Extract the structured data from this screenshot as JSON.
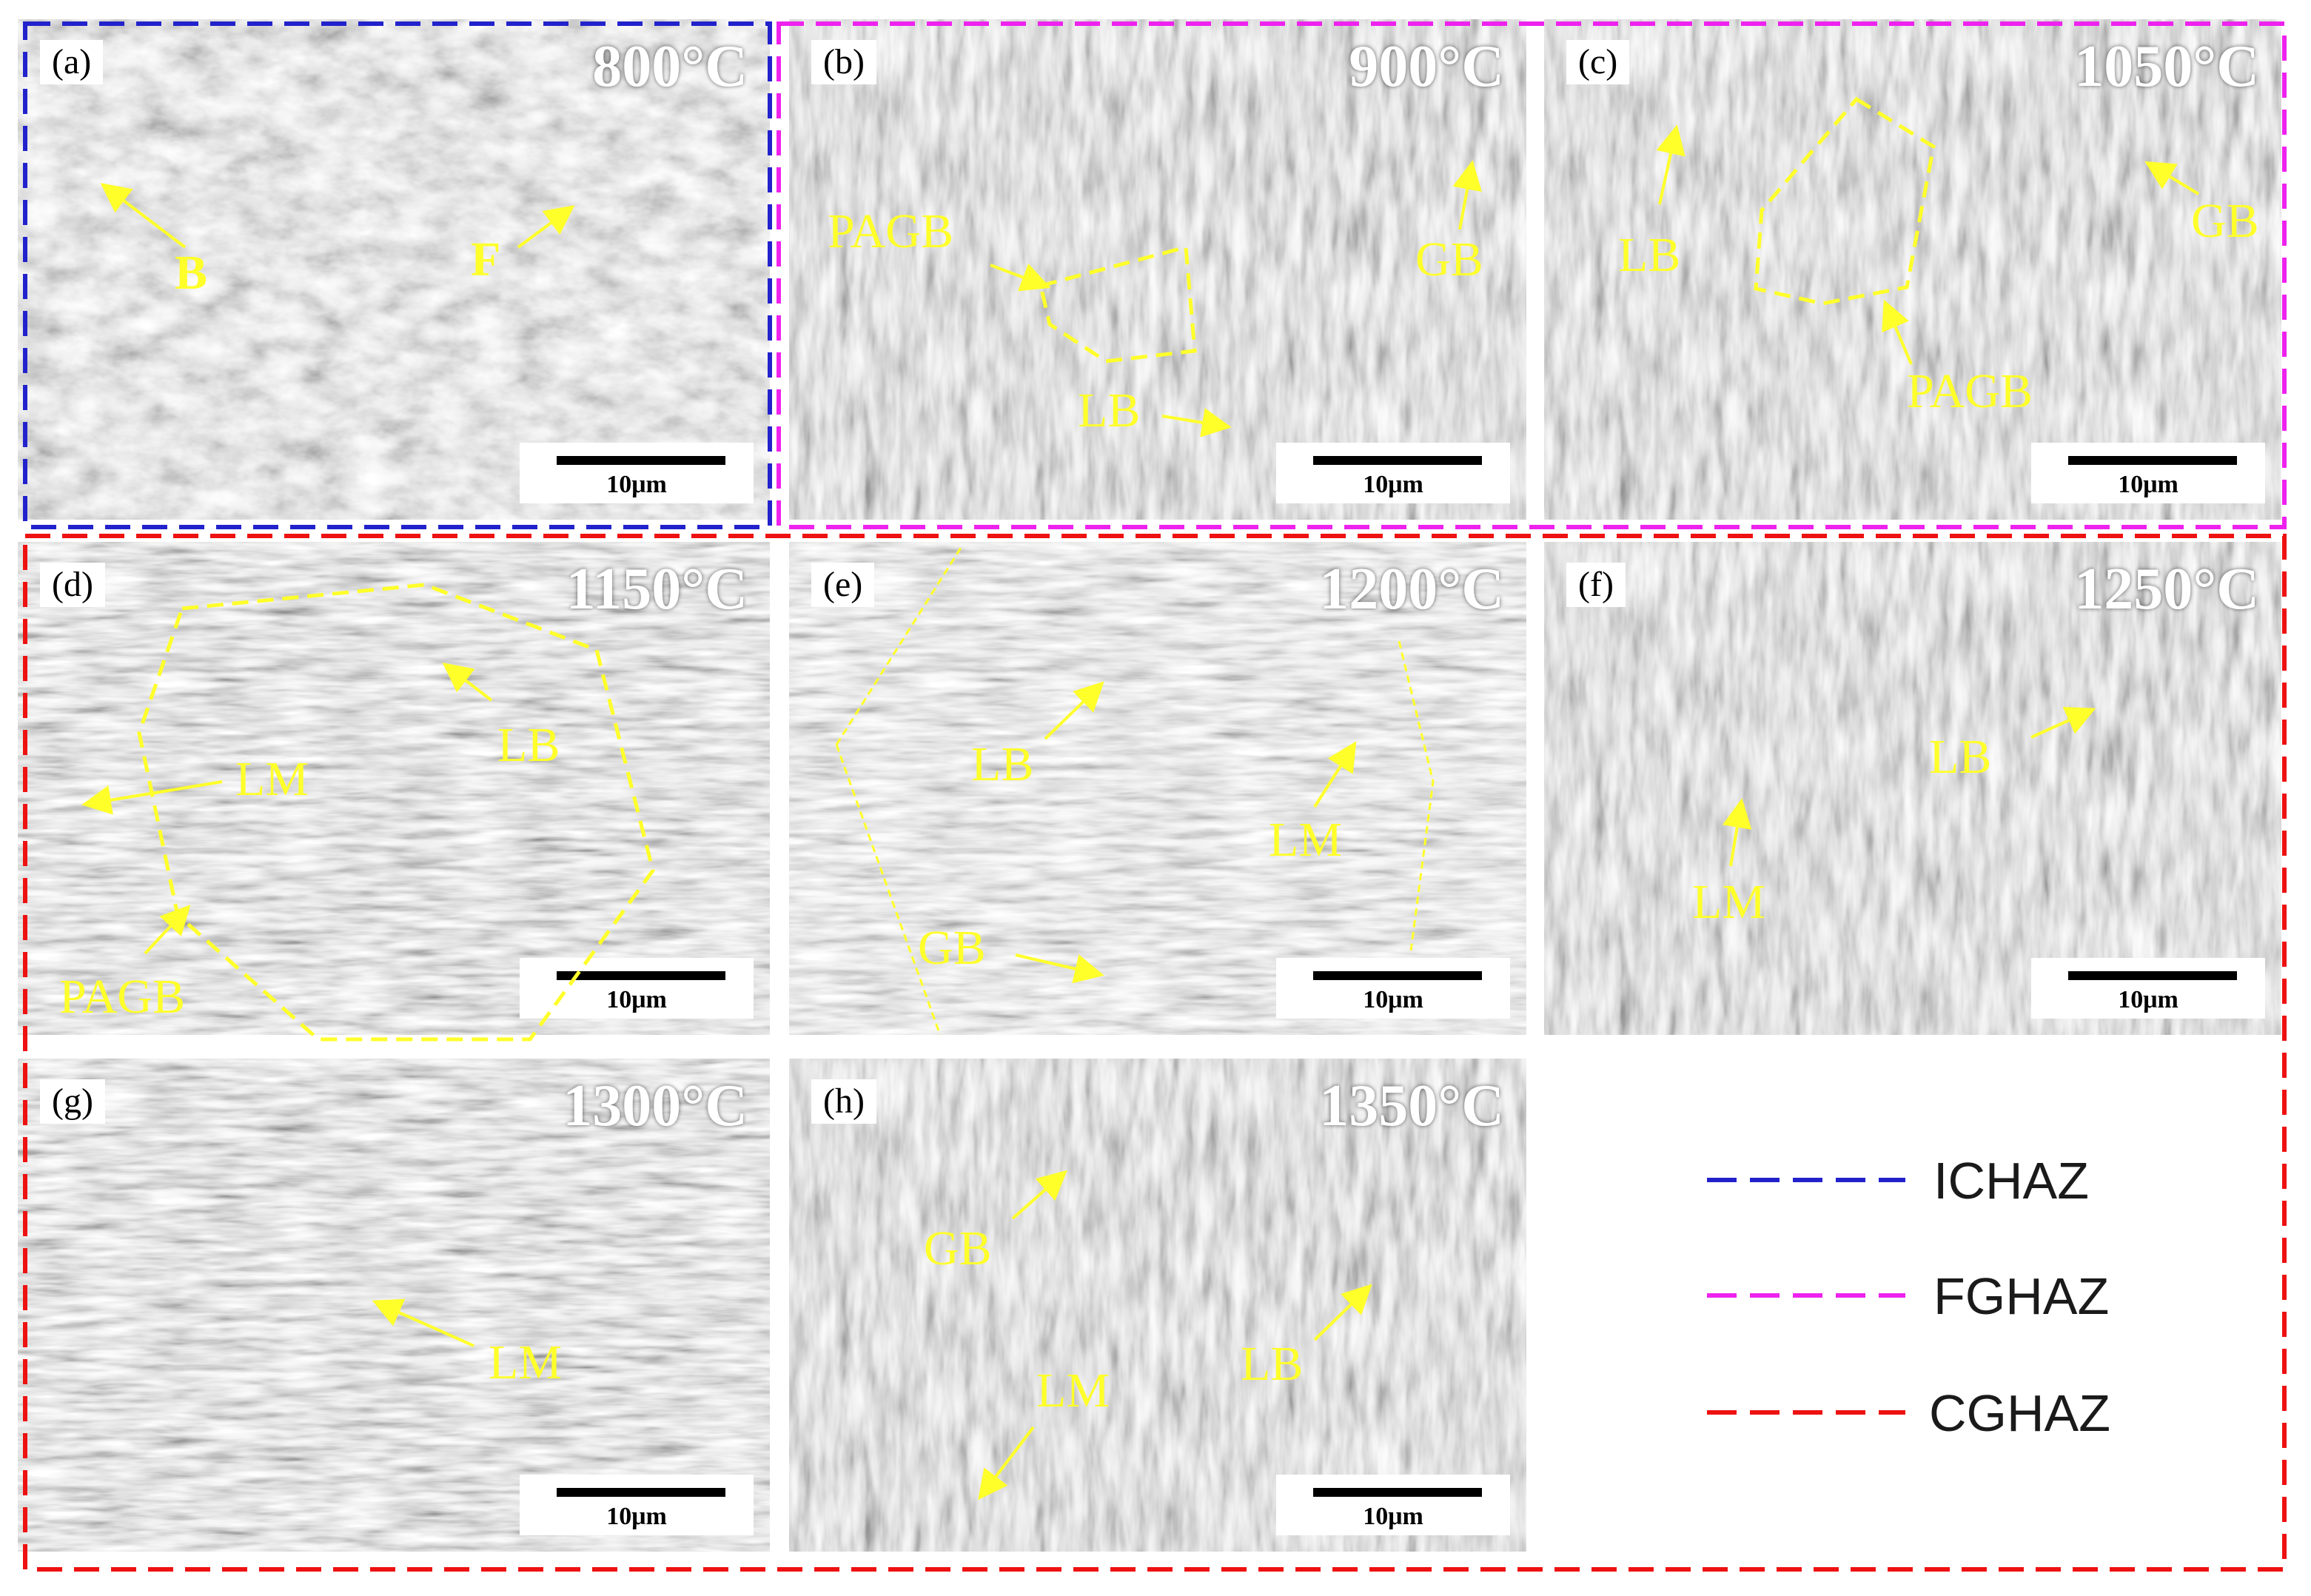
{
  "panels": [
    {
      "label": "(a)",
      "temperature": "800°C",
      "scale": "10μm"
    },
    {
      "label": "(b)",
      "temperature": "900°C",
      "scale": "10μm"
    },
    {
      "label": "(c)",
      "temperature": "1050°C",
      "scale": "10μm"
    },
    {
      "label": "(d)",
      "temperature": "1150°C",
      "scale": "10μm"
    },
    {
      "label": "(e)",
      "temperature": "1200°C",
      "scale": "10μm"
    },
    {
      "label": "(f)",
      "temperature": "1250°C",
      "scale": "10μm"
    },
    {
      "label": "(g)",
      "temperature": "1300°C",
      "scale": "10μm"
    },
    {
      "label": "(h)",
      "temperature": "1350°C",
      "scale": "10μm"
    }
  ],
  "annotations": {
    "a": [
      "B",
      "F"
    ],
    "b": [
      "PAGB",
      "GB",
      "LB"
    ],
    "c": [
      "LB",
      "GB",
      "PAGB"
    ],
    "d": [
      "LM",
      "LB",
      "PAGB"
    ],
    "e": [
      "LB",
      "LM",
      "GB"
    ],
    "f": [
      "LB",
      "LM"
    ],
    "g": [
      "LM"
    ],
    "h": [
      "GB",
      "LB",
      "LM"
    ]
  },
  "legend": [
    {
      "label": "ICHAZ",
      "color": "#2222cc"
    },
    {
      "label": "FGHAZ",
      "color": "#ee22ee"
    },
    {
      "label": "CGHAZ",
      "color": "#ee1111"
    }
  ],
  "annotation_color": "#ffff2a"
}
